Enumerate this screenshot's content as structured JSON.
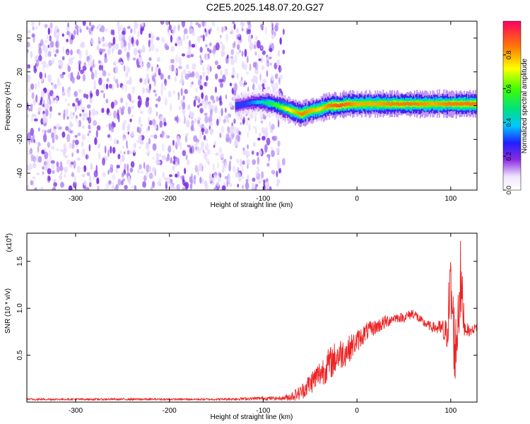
{
  "title": "C2E5.2025.148.07.20.G27",
  "chart_data": [
    {
      "type": "heatmap",
      "xlabel": "Height of straight line (km)",
      "ylabel": "Frequency (Hz)",
      "xlim": [
        -352,
        128
      ],
      "ylim": [
        -50,
        50
      ],
      "x_ticks": [
        -300,
        -200,
        -100,
        0,
        100
      ],
      "y_ticks": [
        -40,
        -20,
        0,
        20,
        40
      ],
      "colorbar": {
        "label": "Normalized spectral amplitude",
        "range": [
          0,
          1
        ],
        "ticks": [
          0.0,
          0.2,
          0.4,
          0.6,
          0.8
        ]
      },
      "noise_region": {
        "x_range": [
          -352,
          -78
        ],
        "level": 0.1
      },
      "signal_ridge": {
        "x": [
          -130,
          -120,
          -110,
          -100,
          -90,
          -80,
          -70,
          -60,
          -50,
          -40,
          -30,
          -20,
          -10,
          0,
          20,
          40,
          60,
          80,
          100,
          128
        ],
        "frequency": [
          0,
          1,
          2,
          2,
          1,
          -1,
          -3,
          -5,
          -3,
          -2,
          0,
          0,
          1,
          1,
          1,
          1,
          1,
          1,
          1,
          1
        ],
        "amplitude": [
          0.3,
          0.3,
          0.35,
          0.45,
          0.55,
          0.65,
          0.75,
          0.85,
          0.8,
          0.75,
          0.85,
          0.9,
          0.85,
          0.8,
          0.8,
          0.85,
          0.85,
          0.8,
          0.85,
          0.85
        ]
      }
    },
    {
      "type": "line",
      "xlabel": "Height of straight line (km)",
      "ylabel": "SNR (10 * v/v)",
      "y_multiplier": "(x10",
      "y_multiplier_exp": "4",
      "y_multiplier_close": ")",
      "xlim": [
        -352,
        128
      ],
      "ylim": [
        0,
        1.8
      ],
      "x_ticks": [
        -300,
        -200,
        -100,
        0,
        100
      ],
      "y_ticks": [
        0.5,
        1.0,
        1.5
      ],
      "series": [
        {
          "color": "#ee2222",
          "x": [
            -352,
            -300,
            -200,
            -150,
            -100,
            -80,
            -70,
            -60,
            -50,
            -40,
            -30,
            -20,
            -10,
            0,
            10,
            20,
            30,
            40,
            50,
            60,
            70,
            80,
            90,
            95,
            100,
            105,
            110,
            115,
            120,
            128
          ],
          "y": [
            0.03,
            0.03,
            0.03,
            0.03,
            0.04,
            0.04,
            0.06,
            0.1,
            0.2,
            0.3,
            0.4,
            0.5,
            0.55,
            0.65,
            0.75,
            0.8,
            0.85,
            0.9,
            0.9,
            0.95,
            0.85,
            0.8,
            0.78,
            0.7,
            1.2,
            0.5,
            1.3,
            0.8,
            0.75,
            0.8
          ],
          "noise": [
            0.01,
            0.01,
            0.01,
            0.01,
            0.02,
            0.02,
            0.05,
            0.08,
            0.12,
            0.15,
            0.18,
            0.18,
            0.15,
            0.12,
            0.1,
            0.08,
            0.08,
            0.05,
            0.05,
            0.06,
            0.05,
            0.05,
            0.1,
            0.2,
            0.45,
            0.4,
            0.5,
            0.1,
            0.05,
            0.05
          ]
        }
      ]
    }
  ]
}
